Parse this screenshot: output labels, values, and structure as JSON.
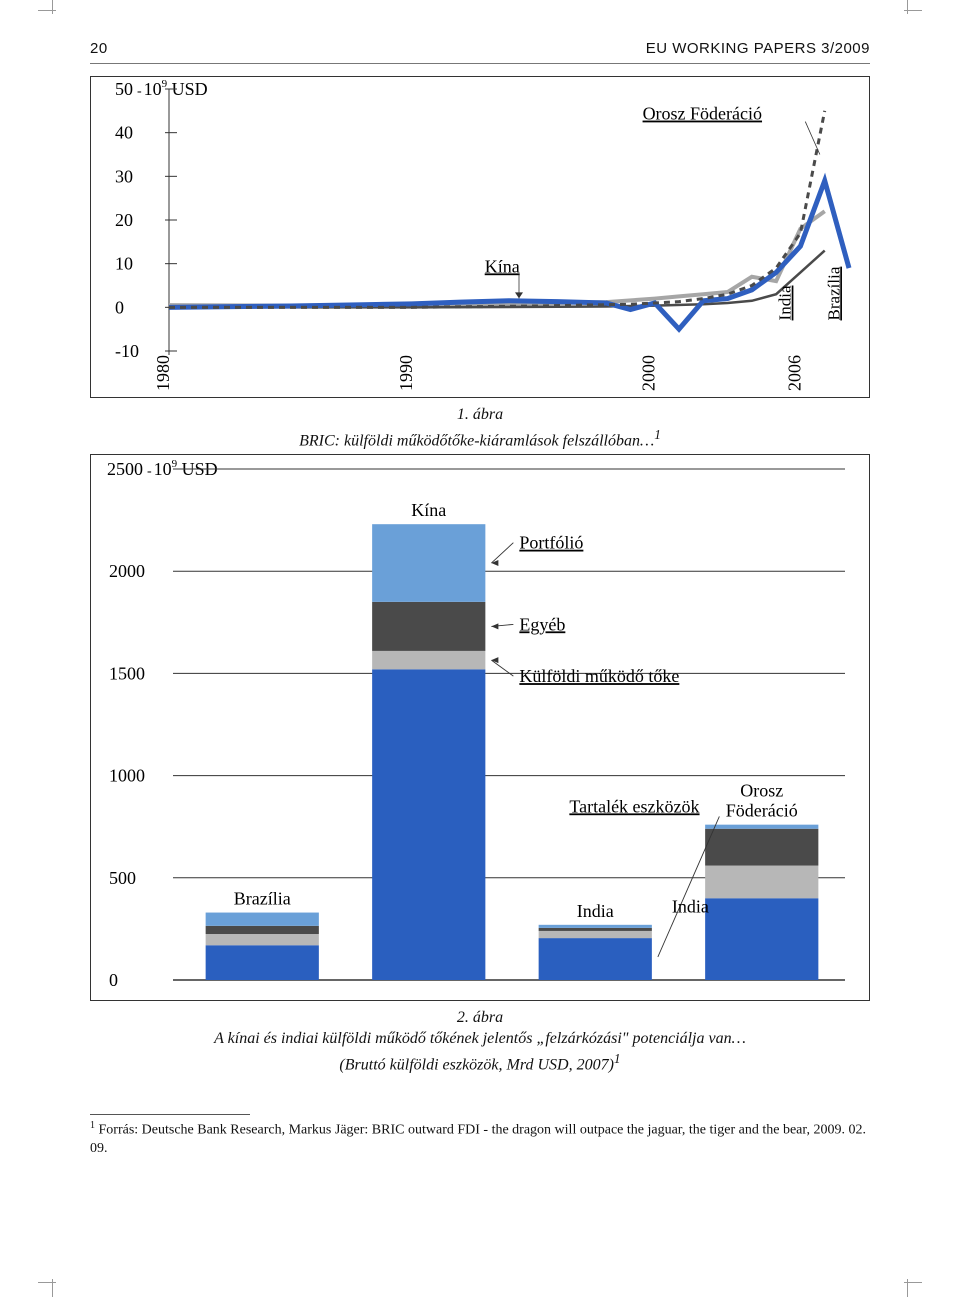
{
  "header": {
    "page_number": "20",
    "title": "EU WORKING PAPERS 3/2009"
  },
  "figure1": {
    "type": "line",
    "y_unit_prefix": "50",
    "y_unit_suffix": "10",
    "y_unit_exp": "9",
    "y_unit_cur": " USD",
    "y_ticks": [
      -10,
      0,
      10,
      20,
      30,
      40,
      50
    ],
    "x_ticks": [
      1980,
      1990,
      2000,
      2006
    ],
    "x_min": 1980,
    "x_max": 2008,
    "y_min": -10,
    "y_max": 50,
    "background_color": "#ffffff",
    "axis_color": "#333333",
    "tick_font_size": 18,
    "china_label": "Kína",
    "russia_label": "Orosz Föderáció",
    "india_label": "India",
    "brazil_label": "Brazília",
    "series": {
      "russia": {
        "color": "#4a4a4a",
        "dash": "6,5",
        "width": 3,
        "points": [
          [
            1980,
            0
          ],
          [
            1990,
            0
          ],
          [
            1995,
            0.3
          ],
          [
            1997,
            0.5
          ],
          [
            1999,
            0.7
          ],
          [
            2000,
            1
          ],
          [
            2001,
            1.3
          ],
          [
            2002,
            2
          ],
          [
            2003,
            3
          ],
          [
            2004,
            5
          ],
          [
            2005,
            9
          ],
          [
            2006,
            17
          ],
          [
            2007,
            45
          ]
        ]
      },
      "china": {
        "color": "#2f5fbf",
        "dash": "",
        "width": 5,
        "points": [
          [
            1980,
            0
          ],
          [
            1985,
            0.3
          ],
          [
            1988,
            0.6
          ],
          [
            1990,
            0.8
          ],
          [
            1992,
            1.2
          ],
          [
            1994,
            1.5
          ],
          [
            1996,
            1.3
          ],
          [
            1998,
            1.0
          ],
          [
            1999,
            -0.5
          ],
          [
            2000,
            1
          ],
          [
            2001,
            -5
          ],
          [
            2002,
            1.5
          ],
          [
            2003,
            2
          ],
          [
            2004,
            4
          ],
          [
            2005,
            8
          ],
          [
            2006,
            14
          ],
          [
            2007,
            29
          ],
          [
            2008,
            9
          ]
        ]
      },
      "brazil": {
        "color": "#a6a6a6",
        "dash": "",
        "width": 4,
        "points": [
          [
            1980,
            0.5
          ],
          [
            1985,
            0.4
          ],
          [
            1990,
            0.6
          ],
          [
            1993,
            0.5
          ],
          [
            1996,
            1
          ],
          [
            1998,
            1.2
          ],
          [
            2000,
            2
          ],
          [
            2001,
            2.5
          ],
          [
            2002,
            3
          ],
          [
            2003,
            3.5
          ],
          [
            2004,
            7
          ],
          [
            2005,
            6
          ],
          [
            2006,
            18
          ],
          [
            2007,
            22
          ]
        ]
      },
      "india": {
        "color": "#4a4a4a",
        "dash": "",
        "width": 2.5,
        "points": [
          [
            1980,
            0
          ],
          [
            1990,
            0
          ],
          [
            1995,
            0.1
          ],
          [
            1998,
            0.2
          ],
          [
            2000,
            0.4
          ],
          [
            2002,
            0.7
          ],
          [
            2003,
            1
          ],
          [
            2004,
            1.5
          ],
          [
            2005,
            3
          ],
          [
            2006,
            8
          ],
          [
            2007,
            13
          ]
        ]
      }
    },
    "caption_num": "1. ábra",
    "caption_text": "BRIC: külföldi működőtőke-kiáramlások felszállóban…",
    "caption_sup": "1"
  },
  "figure2": {
    "type": "stacked-bar",
    "y_unit_prefix": "2500",
    "y_unit_suffix": "10",
    "y_unit_exp": "9",
    "y_unit_cur": " USD",
    "y_ticks": [
      0,
      500,
      1000,
      1500,
      2000,
      2500
    ],
    "y_min": 0,
    "y_max": 2500,
    "background_color": "#ffffff",
    "axis_color": "#333333",
    "tick_font_size": 18,
    "segment_colors": {
      "reserves": "#2a5fbf",
      "fdi": "#b7b7b7",
      "other": "#4a4a4a",
      "portfolio": "#6aa0d8"
    },
    "segment_labels": {
      "portfolio": "Portfólió",
      "other": "Egyéb",
      "fdi": "Külföldi működő tőke",
      "reserves": "Tartalék eszközök"
    },
    "countries": [
      {
        "name": "Brazília",
        "label_above": "Brazília",
        "reserves": 170,
        "fdi": 55,
        "other": 40,
        "portfolio": 65
      },
      {
        "name": "Kína",
        "label_above": "Kína",
        "reserves": 1520,
        "fdi": 90,
        "other": 240,
        "portfolio": 380
      },
      {
        "name": "India",
        "label_above": "India",
        "reserves": 205,
        "fdi": 35,
        "other": 15,
        "portfolio": 15
      },
      {
        "name": "Orosz Föderáció",
        "label_above": "Orosz\nFöderáció",
        "reserves": 400,
        "fdi": 160,
        "other": 180,
        "portfolio": 20
      }
    ],
    "caption_num": "2. ábra",
    "caption_text": "A kínai és indiai külföldi működő tőkének jelentős „felzárkózási\" potenciálja van…",
    "caption_sub": "(Bruttó külföldi eszközök, Mrd USD, 2007)",
    "caption_sup": "1"
  },
  "footnote": {
    "marker": "1",
    "text": " Forrás: Deutsche Bank Research, Markus Jäger: BRIC outward FDI - the dragon will outpace the jaguar, the tiger and the bear, 2009. 02. 09."
  }
}
